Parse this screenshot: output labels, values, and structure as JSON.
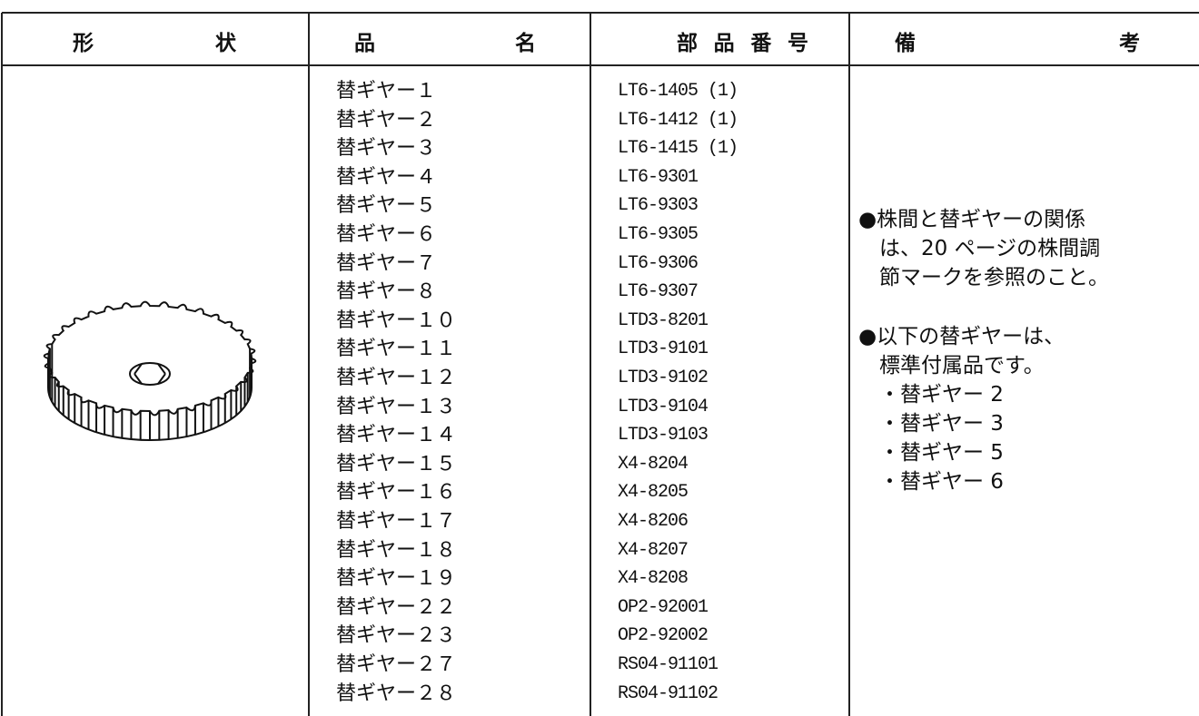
{
  "table": {
    "header": [
      [
        "形",
        "状"
      ],
      [
        "品",
        "名"
      ],
      [
        "部",
        "品",
        "番",
        "号"
      ],
      [
        "備",
        "考"
      ]
    ],
    "rows": [
      [
        "替ギヤー１",
        "LT6-1405 (1)"
      ],
      [
        "替ギヤー２",
        "LT6-1412 (1)"
      ],
      [
        "替ギヤー３",
        "LT6-1415 (1)"
      ],
      [
        "替ギヤー４",
        "LT6-9301"
      ],
      [
        "替ギヤー５",
        "LT6-9303"
      ],
      [
        "替ギヤー６",
        "LT6-9305"
      ],
      [
        "替ギヤー７",
        "LT6-9306"
      ],
      [
        "替ギヤー８",
        "LT6-9307"
      ],
      [
        "替ギヤー１０",
        "LTD3-8201"
      ],
      [
        "替ギヤー１１",
        "LTD3-9101"
      ],
      [
        "替ギヤー１２",
        "LTD3-9102"
      ],
      [
        "替ギヤー１３",
        "LTD3-9104"
      ],
      [
        "替ギヤー１４",
        "LTD3-9103"
      ],
      [
        "替ギヤー１５",
        "X4-8204"
      ],
      [
        "替ギヤー１６",
        "X4-8205"
      ],
      [
        "替ギヤー１７",
        "X4-8206"
      ],
      [
        "替ギヤー１８",
        "X4-8207"
      ],
      [
        "替ギヤー１９",
        "X4-8208"
      ],
      [
        "替ギヤー２２",
        "OP2-92001"
      ],
      [
        "替ギヤー２３",
        "OP2-92002"
      ],
      [
        "替ギヤー２７",
        "RS04-91101"
      ],
      [
        "替ギヤー２８",
        "RS04-91102"
      ]
    ],
    "remarks": [
      [
        "●株間と替ギヤーの関係",
        "は、20 ページの株間調",
        "節マークを参照のこと。"
      ],
      [
        "●以下の替ギヤーは、",
        "標準付属品です。",
        "・替ギヤー 2",
        "・替ギヤー 3",
        "・替ギヤー 5",
        "・替ギヤー 6"
      ]
    ]
  }
}
